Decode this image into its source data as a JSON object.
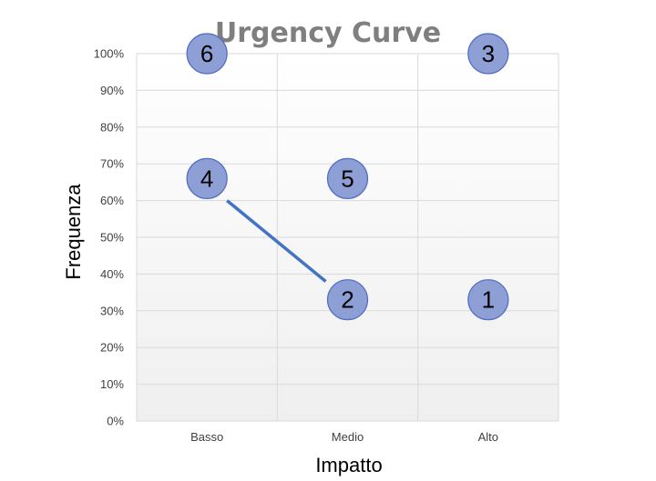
{
  "chart_data": {
    "type": "scatter",
    "title": "Urgency Curve",
    "xlabel": "Impatto",
    "ylabel": "Frequenza",
    "categories": [
      "Basso",
      "Medio",
      "Alto"
    ],
    "y_ticks": [
      "0%",
      "10%",
      "20%",
      "30%",
      "40%",
      "50%",
      "60%",
      "70%",
      "80%",
      "90%",
      "100%"
    ],
    "ylim": [
      0,
      100
    ],
    "grid": true,
    "colors": {
      "bubble_fill": "#8e9fd6",
      "bubble_stroke": "#4f6dc2",
      "line": "#4472c4",
      "grid": "#d9d9d9",
      "plot_top": "#ffffff",
      "plot_bottom": "#efefef"
    },
    "points": [
      {
        "label": "6",
        "x": "Basso",
        "y": 100
      },
      {
        "label": "3",
        "x": "Alto",
        "y": 100
      },
      {
        "label": "4",
        "x": "Basso",
        "y": 66
      },
      {
        "label": "5",
        "x": "Medio",
        "y": 66
      },
      {
        "label": "2",
        "x": "Medio",
        "y": 33
      },
      {
        "label": "1",
        "x": "Alto",
        "y": 33
      }
    ],
    "line": {
      "x": [
        "Basso",
        "Medio"
      ],
      "y": [
        60,
        38
      ]
    }
  }
}
